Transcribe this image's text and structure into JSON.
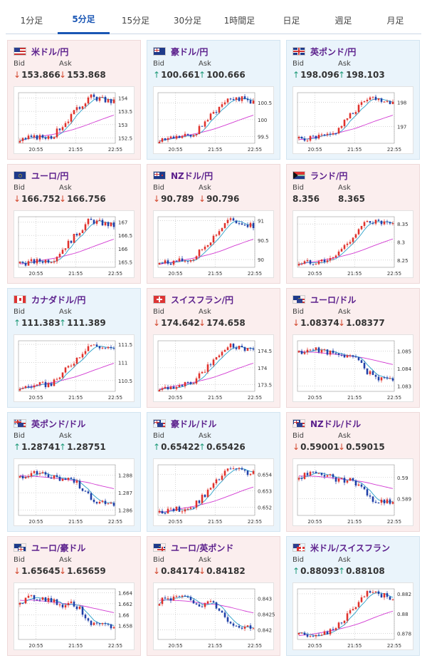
{
  "tabs": [
    {
      "label": "1分足",
      "active": false
    },
    {
      "label": "5分足",
      "active": true
    },
    {
      "label": "15分足",
      "active": false
    },
    {
      "label": "30分足",
      "active": false
    },
    {
      "label": "1時間足",
      "active": false
    },
    {
      "label": "日足",
      "active": false
    },
    {
      "label": "週足",
      "active": false
    },
    {
      "label": "月足",
      "active": false
    }
  ],
  "labels": {
    "bid": "Bid",
    "ask": "Ask"
  },
  "colors": {
    "candle_up": "#e0312b",
    "candle_down": "#1f3fa8",
    "ma_short": "#2aa0c8",
    "ma_long": "#d23ad2",
    "arrow_up": "#1d9a78",
    "arrow_down": "#d2452b"
  },
  "pairs": [
    {
      "name": "米ドル/円",
      "flag": "us",
      "dir": "down",
      "bid": "153.866",
      "ask": "153.868",
      "chart_data": {
        "type": "candlestick",
        "x_ticks": [
          "20:55",
          "21:55",
          "22:55"
        ],
        "y_ticks": [
          "154",
          "153.5",
          "153",
          "152.5"
        ],
        "y_range": [
          152.3,
          154.2
        ],
        "trend": "up"
      }
    },
    {
      "name": "豪ドル/円",
      "flag": "au",
      "dir": "up",
      "bid": "100.661",
      "ask": "100.666",
      "chart_data": {
        "type": "candlestick",
        "x_ticks": [
          "20:55",
          "21:55",
          "22:55"
        ],
        "y_ticks": [
          "100.5",
          "100",
          "99.5"
        ],
        "y_range": [
          99.3,
          100.8
        ],
        "trend": "up"
      }
    },
    {
      "name": "英ポンド/円",
      "flag": "gb",
      "dir": "up",
      "bid": "198.096",
      "ask": "198.103",
      "chart_data": {
        "type": "candlestick",
        "x_ticks": [
          "20:55",
          "21:55",
          "22:55"
        ],
        "y_ticks": [
          "198",
          "197"
        ],
        "y_range": [
          196.3,
          198.4
        ],
        "trend": "up"
      }
    },
    {
      "name": "ユーロ/円",
      "flag": "eu",
      "dir": "down",
      "bid": "166.752",
      "ask": "166.756",
      "chart_data": {
        "type": "candlestick",
        "x_ticks": [
          "20:55",
          "21:55",
          "22:55"
        ],
        "y_ticks": [
          "167",
          "166.5",
          "166",
          "165.5"
        ],
        "y_range": [
          165.3,
          167.2
        ],
        "trend": "up"
      }
    },
    {
      "name": "NZドル/円",
      "flag": "nz",
      "dir": "down",
      "bid": "90.789",
      "ask": "90.796",
      "chart_data": {
        "type": "candlestick",
        "x_ticks": [
          "20:55",
          "21:55",
          "22:55"
        ],
        "y_ticks": [
          "91",
          "90.5",
          "90"
        ],
        "y_range": [
          89.8,
          91.1
        ],
        "trend": "up"
      }
    },
    {
      "name": "ランド/円",
      "flag": "za",
      "dir": "none",
      "bid": "8.356",
      "ask": "8.365",
      "chart_data": {
        "type": "candlestick",
        "x_ticks": [
          "20:55",
          "21:55",
          "22:55"
        ],
        "y_ticks": [
          "8.35",
          "8.3",
          "8.25"
        ],
        "y_range": [
          8.23,
          8.37
        ],
        "trend": "up"
      }
    },
    {
      "name": "カナダドル/円",
      "flag": "ca",
      "dir": "up",
      "bid": "111.383",
      "ask": "111.389",
      "chart_data": {
        "type": "candlestick",
        "x_ticks": [
          "20:55",
          "21:55",
          "22:55"
        ],
        "y_ticks": [
          "111.5",
          "111",
          "110.5"
        ],
        "y_range": [
          110.2,
          111.6
        ],
        "trend": "up"
      }
    },
    {
      "name": "スイスフラン/円",
      "flag": "ch",
      "dir": "down",
      "bid": "174.642",
      "ask": "174.658",
      "chart_data": {
        "type": "candlestick",
        "x_ticks": [
          "20:55",
          "21:55",
          "22:55"
        ],
        "y_ticks": [
          "174.5",
          "174",
          "173.5"
        ],
        "y_range": [
          173.3,
          174.8
        ],
        "trend": "up"
      }
    },
    {
      "name": "ユーロ/ドル",
      "flag": "euus",
      "dir": "down",
      "bid": "1.08374",
      "ask": "1.08377",
      "chart_data": {
        "type": "candlestick",
        "x_ticks": [
          "20:55",
          "21:55",
          "22:55"
        ],
        "y_ticks": [
          "1.085",
          "1.084",
          "1.083"
        ],
        "y_range": [
          1.0827,
          1.0856
        ],
        "trend": "down"
      }
    },
    {
      "name": "英ポンド/ドル",
      "flag": "gbus",
      "dir": "up",
      "bid": "1.28741",
      "ask": "1.28751",
      "chart_data": {
        "type": "candlestick",
        "x_ticks": [
          "20:55",
          "21:55",
          "22:55"
        ],
        "y_ticks": [
          "1.288",
          "1.287",
          "1.286"
        ],
        "y_range": [
          1.2857,
          1.2886
        ],
        "trend": "down"
      }
    },
    {
      "name": "豪ドル/ドル",
      "flag": "auus",
      "dir": "up",
      "bid": "0.65422",
      "ask": "0.65426",
      "chart_data": {
        "type": "candlestick",
        "x_ticks": [
          "20:55",
          "21:55",
          "22:55"
        ],
        "y_ticks": [
          "0.654",
          "0.653",
          "0.652"
        ],
        "y_range": [
          0.6515,
          0.6546
        ],
        "trend": "up"
      }
    },
    {
      "name": "NZドル/ドル",
      "flag": "nzus",
      "dir": "down",
      "bid": "0.59001",
      "ask": "0.59015",
      "chart_data": {
        "type": "candlestick",
        "x_ticks": [
          "20:55",
          "21:55",
          "22:55"
        ],
        "y_ticks": [
          "0.59",
          "0.589"
        ],
        "y_range": [
          0.5882,
          0.5906
        ],
        "trend": "down"
      }
    },
    {
      "name": "ユーロ/豪ドル",
      "flag": "euau",
      "dir": "down",
      "bid": "1.65645",
      "ask": "1.65659",
      "chart_data": {
        "type": "candlestick",
        "x_ticks": [
          "20:55",
          "21:55",
          "22:55"
        ],
        "y_ticks": [
          "1.664",
          "1.662",
          "1.66",
          "1.658"
        ],
        "y_range": [
          1.6555,
          1.6647
        ],
        "trend": "down"
      }
    },
    {
      "name": "ユーロ/英ポンド",
      "flag": "eugb",
      "dir": "down",
      "bid": "0.84174",
      "ask": "0.84182",
      "chart_data": {
        "type": "candlestick",
        "x_ticks": [
          "20:55",
          "21:55",
          "22:55"
        ],
        "y_ticks": [
          "0.843",
          "0.8425",
          "0.842"
        ],
        "y_range": [
          0.8417,
          0.8433
        ],
        "trend": "down"
      }
    },
    {
      "name": "米ドル/スイスフラン",
      "flag": "usch",
      "dir": "up",
      "bid": "0.88093",
      "ask": "0.88108",
      "chart_data": {
        "type": "candlestick",
        "x_ticks": [
          "20:55",
          "21:55",
          "22:55"
        ],
        "y_ticks": [
          "0.882",
          "0.88",
          "0.878"
        ],
        "y_range": [
          0.8774,
          0.8825
        ],
        "trend": "up"
      }
    }
  ]
}
